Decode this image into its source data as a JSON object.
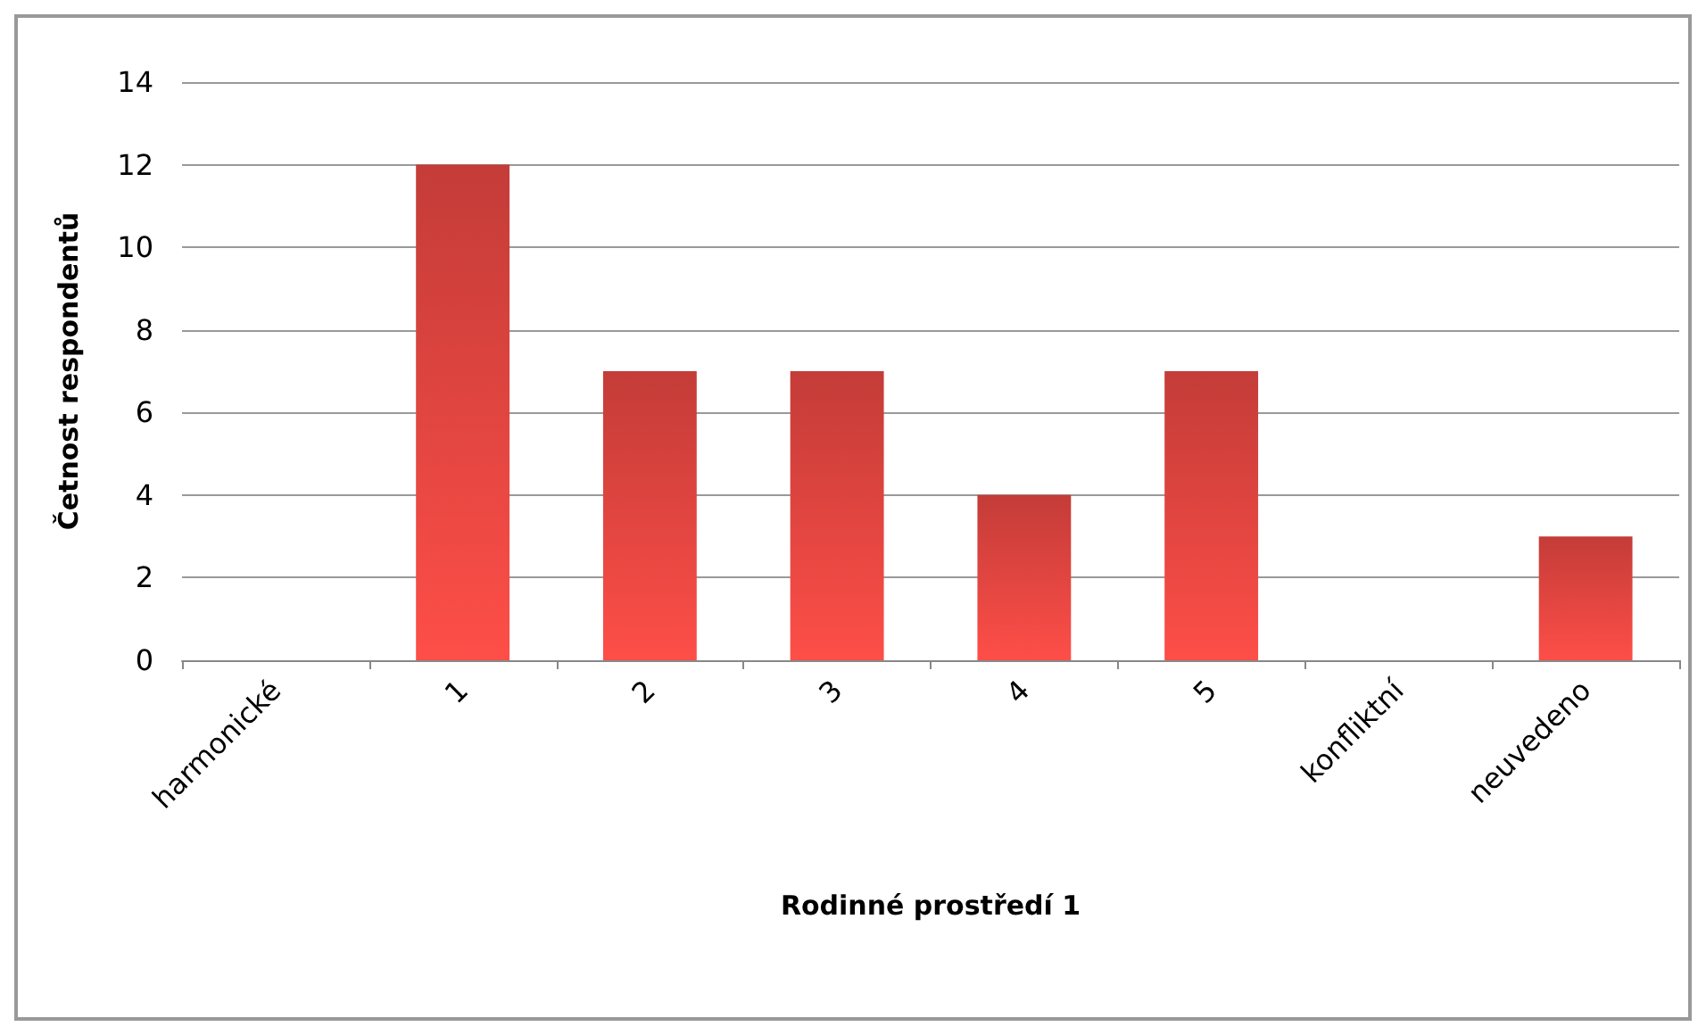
{
  "chart_data": {
    "type": "bar",
    "xlabel": "Rodinné prostředí 1",
    "ylabel": "Četnost respondentů",
    "categories": [
      "harmonické",
      "1",
      "2",
      "3",
      "4",
      "5",
      "konfliktní",
      "neuvedeno"
    ],
    "values": [
      0,
      12,
      7,
      7,
      4,
      7,
      0,
      3
    ],
    "color": "#c43c38",
    "ylim": [
      0,
      14
    ],
    "yticks": [
      0,
      2,
      4,
      6,
      8,
      10,
      12,
      14
    ],
    "grid": "y"
  }
}
